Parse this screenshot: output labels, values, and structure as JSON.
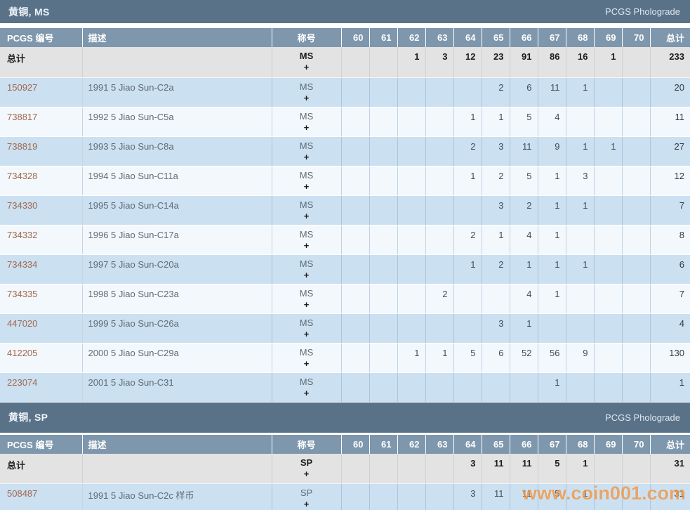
{
  "watermark": {
    "text": "www.coin001.com"
  },
  "columns": {
    "pcgs": "PCGS 编号",
    "desc": "描述",
    "designation": "称号",
    "total": "总计"
  },
  "grade_columns": [
    "60",
    "61",
    "62",
    "63",
    "64",
    "65",
    "66",
    "67",
    "68",
    "69",
    "70"
  ],
  "colors": {
    "section_bar": "#5a7288",
    "column_header": "#7e97ad",
    "row_blue": "#cbe0f1",
    "row_white": "#f3f8fc",
    "row_total": "#e3e3e3",
    "link": "#a2674f",
    "watermark": "#ef9747"
  },
  "sections": [
    {
      "title": "黄铜, MS",
      "photograde_label": "PCGS Pholograde",
      "total_row": {
        "label": "总计",
        "desc": "",
        "designation": {
          "line1": "MS",
          "line2": "+"
        },
        "grades": [
          "",
          "",
          "1",
          "3",
          "12",
          "23",
          "91",
          "86",
          "16",
          "1",
          ""
        ],
        "total": "233"
      },
      "rows": [
        {
          "pcgs_no": "150927",
          "desc": "1991 5 Jiao Sun-C2a",
          "designation": {
            "line1": "MS",
            "line2": "+"
          },
          "grades": [
            "",
            "",
            "",
            "",
            "",
            "2",
            "6",
            "11",
            "1",
            "",
            ""
          ],
          "total": "20"
        },
        {
          "pcgs_no": "738817",
          "desc": "1992 5 Jiao Sun-C5a",
          "designation": {
            "line1": "MS",
            "line2": "+"
          },
          "grades": [
            "",
            "",
            "",
            "",
            "1",
            "1",
            "5",
            "4",
            "",
            "",
            ""
          ],
          "total": "11"
        },
        {
          "pcgs_no": "738819",
          "desc": "1993 5 Jiao Sun-C8a",
          "designation": {
            "line1": "MS",
            "line2": "+"
          },
          "grades": [
            "",
            "",
            "",
            "",
            "2",
            "3",
            "11",
            "9",
            "1",
            "1",
            ""
          ],
          "total": "27"
        },
        {
          "pcgs_no": "734328",
          "desc": "1994 5 Jiao Sun-C11a",
          "designation": {
            "line1": "MS",
            "line2": "+"
          },
          "grades": [
            "",
            "",
            "",
            "",
            "1",
            "2",
            "5",
            "1",
            "3",
            "",
            ""
          ],
          "total": "12"
        },
        {
          "pcgs_no": "734330",
          "desc": "1995 5 Jiao Sun-C14a",
          "designation": {
            "line1": "MS",
            "line2": "+"
          },
          "grades": [
            "",
            "",
            "",
            "",
            "",
            "3",
            "2",
            "1",
            "1",
            "",
            ""
          ],
          "total": "7"
        },
        {
          "pcgs_no": "734332",
          "desc": "1996 5 Jiao Sun-C17a",
          "designation": {
            "line1": "MS",
            "line2": "+"
          },
          "grades": [
            "",
            "",
            "",
            "",
            "2",
            "1",
            "4",
            "1",
            "",
            "",
            ""
          ],
          "total": "8"
        },
        {
          "pcgs_no": "734334",
          "desc": "1997 5 Jiao Sun-C20a",
          "designation": {
            "line1": "MS",
            "line2": "+"
          },
          "grades": [
            "",
            "",
            "",
            "",
            "1",
            "2",
            "1",
            "1",
            "1",
            "",
            ""
          ],
          "total": "6"
        },
        {
          "pcgs_no": "734335",
          "desc": "1998 5 Jiao Sun-C23a",
          "designation": {
            "line1": "MS",
            "line2": "+"
          },
          "grades": [
            "",
            "",
            "",
            "2",
            "",
            "",
            "4",
            "1",
            "",
            "",
            ""
          ],
          "total": "7"
        },
        {
          "pcgs_no": "447020",
          "desc": "1999 5 Jiao Sun-C26a",
          "designation": {
            "line1": "MS",
            "line2": "+"
          },
          "grades": [
            "",
            "",
            "",
            "",
            "",
            "3",
            "1",
            "",
            "",
            "",
            ""
          ],
          "total": "4"
        },
        {
          "pcgs_no": "412205",
          "desc": "2000 5 Jiao Sun-C29a",
          "designation": {
            "line1": "MS",
            "line2": "+"
          },
          "grades": [
            "",
            "",
            "1",
            "1",
            "5",
            "6",
            "52",
            "56",
            "9",
            "",
            ""
          ],
          "total": "130"
        },
        {
          "pcgs_no": "223074",
          "desc": "2001 5 Jiao Sun-C31",
          "designation": {
            "line1": "MS",
            "line2": "+"
          },
          "grades": [
            "",
            "",
            "",
            "",
            "",
            "",
            "",
            "1",
            "",
            "",
            ""
          ],
          "total": "1"
        }
      ]
    },
    {
      "title": "黄铜, SP",
      "photograde_label": "PCGS Pholograde",
      "total_row": {
        "label": "总计",
        "desc": "",
        "designation": {
          "line1": "SP",
          "line2": "+"
        },
        "grades": [
          "",
          "",
          "",
          "",
          "3",
          "11",
          "11",
          "5",
          "1",
          "",
          ""
        ],
        "total": "31"
      },
      "rows": [
        {
          "pcgs_no": "508487",
          "desc": "1991 5 Jiao Sun-C2c 样币",
          "designation": {
            "line1": "SP",
            "line2": "+"
          },
          "grades": [
            "",
            "",
            "",
            "",
            "3",
            "11",
            "11",
            "5",
            "1",
            "",
            ""
          ],
          "total": "31"
        }
      ]
    }
  ]
}
